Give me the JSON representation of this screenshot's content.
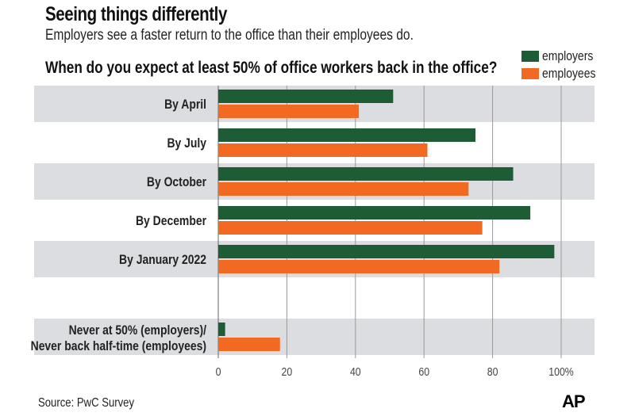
{
  "chart_data": {
    "type": "bar",
    "orientation": "horizontal",
    "title": "Seeing things differently",
    "subtitle": "Employers see a faster return to the office than their employees do.",
    "question": "When do you expect at least 50% of office workers back in the office?",
    "categories": [
      "By April",
      "By July",
      "By October",
      "By December",
      "By January 2022",
      "",
      "Never at 50% (employers)/|Never back half-time (employees)"
    ],
    "series": [
      {
        "name": "employers",
        "color": "#1e5c36",
        "values": [
          51,
          75,
          86,
          91,
          98,
          null,
          2
        ]
      },
      {
        "name": "employees",
        "color": "#f26a21",
        "values": [
          41,
          61,
          73,
          77,
          82,
          null,
          18
        ]
      }
    ],
    "xlim": [
      0,
      110
    ],
    "ticks": [
      0,
      20,
      40,
      60,
      80,
      100
    ],
    "tick_labels": [
      "0",
      "20",
      "40",
      "60",
      "80",
      "100%"
    ],
    "grid": true,
    "legend": "top-right",
    "band_color": "#dcdde0",
    "source": "Source: PwC Survey",
    "logo": "AP"
  }
}
